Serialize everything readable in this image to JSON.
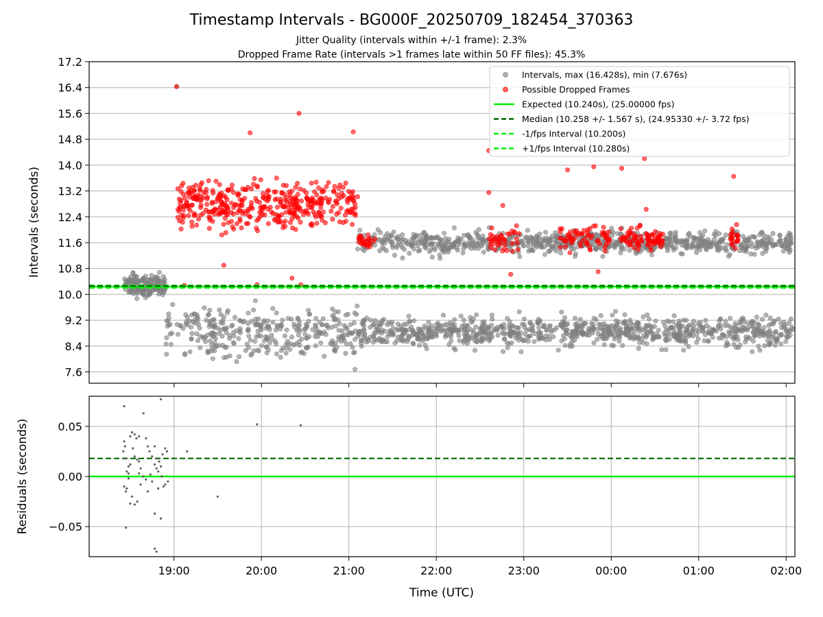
{
  "colors": {
    "intervals": "#808080",
    "dropped": "#ff0000",
    "expected": "#00ee00",
    "median": "#006400",
    "bound": "#00ee00",
    "residual": "#606060",
    "grid": "#b0b0b0"
  },
  "chart_data": [
    {
      "type": "scatter",
      "title": "Timestamp Intervals - BG000F_20250709_182454_370363",
      "subtitle_lines": [
        "Jitter Quality (intervals within +/-1 frame): 2.3%",
        "Dropped Frame Rate (intervals >1 frames late within 50 FF files): 45.3%"
      ],
      "xlabel": "",
      "ylabel": "Intervals (seconds)",
      "x_range_hours": [
        18.03,
        26.1
      ],
      "ylim": [
        7.25,
        17.2
      ],
      "yticks": [
        7.6,
        8.4,
        9.2,
        10.0,
        10.8,
        11.6,
        12.4,
        13.2,
        14.0,
        14.8,
        15.6,
        16.4,
        17.2
      ],
      "yticks_labels": [
        "7.6",
        "8.4",
        "9.2",
        "10.0",
        "10.8",
        "11.6",
        "12.4",
        "13.2",
        "14.0",
        "14.8",
        "15.6",
        "16.4",
        "17.2"
      ],
      "grid": "horizontal",
      "legend_position": "top-right",
      "legend": [
        {
          "kind": "dot",
          "color": "#808080",
          "label": "Intervals, max (16.428s), min (7.676s)"
        },
        {
          "kind": "dot",
          "color": "#ff0000",
          "label": "Possible Dropped Frames"
        },
        {
          "kind": "solid",
          "color": "#00ee00",
          "label": "Expected (10.240s), (25.00000 fps)"
        },
        {
          "kind": "dashed",
          "color": "#006400",
          "label": "Median (10.258 +/- 1.567 s), (24.95330 +/- 3.72 fps)"
        },
        {
          "kind": "dashed",
          "color": "#00ee00",
          "label": "-1/fps Interval (10.200s)"
        },
        {
          "kind": "dashed",
          "color": "#00ee00",
          "label": "+1/fps Interval (10.280s)"
        }
      ],
      "reference_lines": {
        "expected": 10.24,
        "median": 10.258,
        "lower": 10.2,
        "upper": 10.28
      },
      "series": [
        {
          "label_ref": "Intervals",
          "regions": [
            {
              "x": [
                18.43,
                18.9
              ],
              "y_center": 10.25,
              "y_spread": 0.35,
              "count": 160
            },
            {
              "x": [
                18.9,
                21.1
              ],
              "y_center": 9.0,
              "y_spread": 0.55,
              "count": 260
            },
            {
              "x": [
                18.9,
                21.1
              ],
              "y_center": 8.3,
              "y_spread": 0.3,
              "count": 70
            },
            {
              "x": [
                21.1,
                26.1
              ],
              "y_center": 8.85,
              "y_spread": 0.4,
              "count": 900
            },
            {
              "x": [
                21.1,
                26.1
              ],
              "y_center": 11.6,
              "y_spread": 0.3,
              "count": 800
            }
          ],
          "extremes": [
            [
              19.03,
              16.43
            ],
            [
              21.07,
              7.68
            ]
          ]
        },
        {
          "label_ref": "Possible Dropped Frames",
          "regions": [
            {
              "x": [
                19.03,
                21.1
              ],
              "y_center": 12.8,
              "y_spread": 0.6,
              "count": 420
            },
            {
              "x": [
                21.1,
                21.3
              ],
              "y_center": 11.65,
              "y_spread": 0.2,
              "count": 25
            },
            {
              "x": [
                22.6,
                22.95
              ],
              "y_center": 11.7,
              "y_spread": 0.3,
              "count": 40
            },
            {
              "x": [
                23.4,
                24.0
              ],
              "y_center": 11.7,
              "y_spread": 0.35,
              "count": 70
            },
            {
              "x": [
                24.1,
                24.35
              ],
              "y_center": 11.7,
              "y_spread": 0.3,
              "count": 40
            },
            {
              "x": [
                24.4,
                24.6
              ],
              "y_center": 11.65,
              "y_spread": 0.3,
              "count": 40
            },
            {
              "x": [
                25.35,
                25.45
              ],
              "y_center": 11.8,
              "y_spread": 0.3,
              "count": 20
            }
          ],
          "outliers": [
            [
              19.03,
              16.43
            ],
            [
              20.43,
              15.6
            ],
            [
              19.87,
              15.0
            ],
            [
              21.05,
              15.03
            ],
            [
              20.45,
              10.3
            ],
            [
              19.57,
              10.9
            ],
            [
              20.35,
              10.5
            ],
            [
              19.12,
              10.28
            ],
            [
              19.95,
              10.3
            ],
            [
              22.6,
              14.45
            ],
            [
              24.38,
              14.2
            ],
            [
              23.8,
              13.95
            ],
            [
              24.12,
              13.9
            ],
            [
              23.5,
              13.85
            ],
            [
              25.4,
              13.65
            ],
            [
              22.76,
              12.75
            ],
            [
              22.6,
              13.15
            ],
            [
              22.85,
              10.62
            ],
            [
              23.85,
              10.7
            ],
            [
              24.4,
              12.63
            ]
          ]
        }
      ]
    },
    {
      "type": "scatter",
      "xlabel": "Time (UTC)",
      "ylabel": "Residuals (seconds)",
      "x_range_hours": [
        18.03,
        26.1
      ],
      "xticks_hours": [
        19,
        20,
        21,
        22,
        23,
        24,
        25,
        26
      ],
      "xticks_labels": [
        "19:00",
        "20:00",
        "21:00",
        "22:00",
        "23:00",
        "00:00",
        "01:00",
        "02:00"
      ],
      "ylim": [
        -0.08,
        0.08
      ],
      "yticks": [
        0.05,
        0.0,
        -0.05
      ],
      "yticks_labels": [
        "0.05",
        "0.00",
        "−0.05"
      ],
      "grid": "both",
      "reference_lines": {
        "zero": 0.0,
        "median": 0.018
      },
      "points": [
        [
          18.43,
          0.07
        ],
        [
          18.45,
          -0.051
        ],
        [
          18.43,
          0.035
        ],
        [
          18.44,
          0.03
        ],
        [
          18.42,
          0.025
        ],
        [
          18.45,
          0.018
        ],
        [
          18.46,
          0.005
        ],
        [
          18.43,
          -0.01
        ],
        [
          18.45,
          -0.015
        ],
        [
          18.48,
          0.003
        ],
        [
          18.5,
          0.04
        ],
        [
          18.52,
          0.044
        ],
        [
          18.53,
          0.028
        ],
        [
          18.55,
          0.042
        ],
        [
          18.57,
          0.038
        ],
        [
          18.6,
          0.04
        ],
        [
          18.5,
          -0.027
        ],
        [
          18.52,
          -0.02
        ],
        [
          18.48,
          0.01
        ],
        [
          18.5,
          0.012
        ],
        [
          18.55,
          0.02
        ],
        [
          18.58,
          0.017
        ],
        [
          18.6,
          0.015
        ],
        [
          18.62,
          0.008
        ],
        [
          18.65,
          0.063
        ],
        [
          18.68,
          0.038
        ],
        [
          18.7,
          0.03
        ],
        [
          18.72,
          0.025
        ],
        [
          18.75,
          0.02
        ],
        [
          18.78,
          0.03
        ],
        [
          18.8,
          0.018
        ],
        [
          18.82,
          0.005
        ],
        [
          18.85,
          0.01
        ],
        [
          18.87,
          0.022
        ],
        [
          18.9,
          0.028
        ],
        [
          18.92,
          0.025
        ],
        [
          18.85,
          0.077
        ],
        [
          18.78,
          -0.072
        ],
        [
          18.8,
          -0.075
        ],
        [
          18.78,
          -0.037
        ],
        [
          18.85,
          -0.042
        ],
        [
          18.82,
          -0.012
        ],
        [
          18.88,
          -0.01
        ],
        [
          18.9,
          -0.008
        ],
        [
          18.93,
          -0.005
        ],
        [
          18.7,
          -0.015
        ],
        [
          18.68,
          -0.003
        ],
        [
          18.62,
          -0.008
        ],
        [
          18.58,
          -0.025
        ],
        [
          18.55,
          -0.028
        ],
        [
          18.6,
          0.003
        ],
        [
          18.65,
          0.0
        ],
        [
          18.73,
          0.002
        ],
        [
          18.75,
          -0.005
        ],
        [
          18.78,
          0.012
        ],
        [
          18.8,
          0.008
        ],
        [
          18.83,
          0.015
        ],
        [
          18.86,
          0.0
        ],
        [
          18.48,
          -0.002
        ],
        [
          18.46,
          -0.012
        ],
        [
          19.15,
          0.025
        ],
        [
          19.5,
          -0.02
        ],
        [
          19.95,
          0.052
        ],
        [
          20.45,
          0.051
        ]
      ]
    }
  ]
}
